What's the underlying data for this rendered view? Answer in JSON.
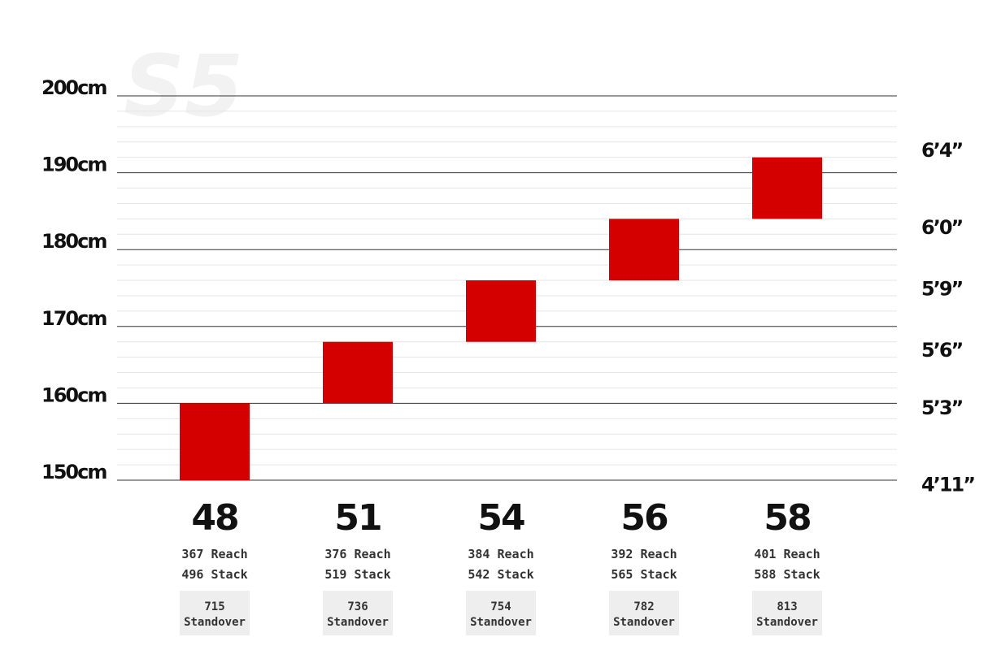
{
  "watermark": "S5",
  "chart_data": {
    "type": "range-bar",
    "y_unit": "cm",
    "ylim": [
      150,
      200
    ],
    "left_ticks": [
      {
        "value": 200,
        "label": "200cm"
      },
      {
        "value": 190,
        "label": "190cm"
      },
      {
        "value": 180,
        "label": "180cm"
      },
      {
        "value": 170,
        "label": "170cm"
      },
      {
        "value": 160,
        "label": "160cm"
      },
      {
        "value": 150,
        "label": "150cm"
      }
    ],
    "right_ticks": [
      {
        "value": 193,
        "label": "6’4”"
      },
      {
        "value": 183,
        "label": "6’0”"
      },
      {
        "value": 175,
        "label": "5’9”"
      },
      {
        "value": 167,
        "label": "5’6”"
      },
      {
        "value": 159.5,
        "label": "5’3”"
      },
      {
        "value": 149.5,
        "label": "4’11”"
      }
    ],
    "categories": [
      "48",
      "51",
      "54",
      "56",
      "58"
    ],
    "ranges": [
      {
        "size": "48",
        "low": 150,
        "high": 160
      },
      {
        "size": "51",
        "low": 160,
        "high": 168
      },
      {
        "size": "54",
        "low": 168,
        "high": 176
      },
      {
        "size": "56",
        "low": 176,
        "high": 184
      },
      {
        "size": "58",
        "low": 184,
        "high": 192
      }
    ],
    "specs": [
      {
        "reach": "367 Reach",
        "stack": "496 Stack",
        "standover_value": "715",
        "standover_label": "Standover"
      },
      {
        "reach": "376 Reach",
        "stack": "519 Stack",
        "standover_value": "736",
        "standover_label": "Standover"
      },
      {
        "reach": "384 Reach",
        "stack": "542 Stack",
        "standover_value": "754",
        "standover_label": "Standover"
      },
      {
        "reach": "392 Reach",
        "stack": "565 Stack",
        "standover_value": "782",
        "standover_label": "Standover"
      },
      {
        "reach": "401 Reach",
        "stack": "588 Stack",
        "standover_value": "813",
        "standover_label": "Standover"
      }
    ],
    "bar_color": "#d40000",
    "major_grid_color": "#333333",
    "minor_grid_color": "#e6e6e6",
    "spec_box_color": "#eeeeee"
  }
}
